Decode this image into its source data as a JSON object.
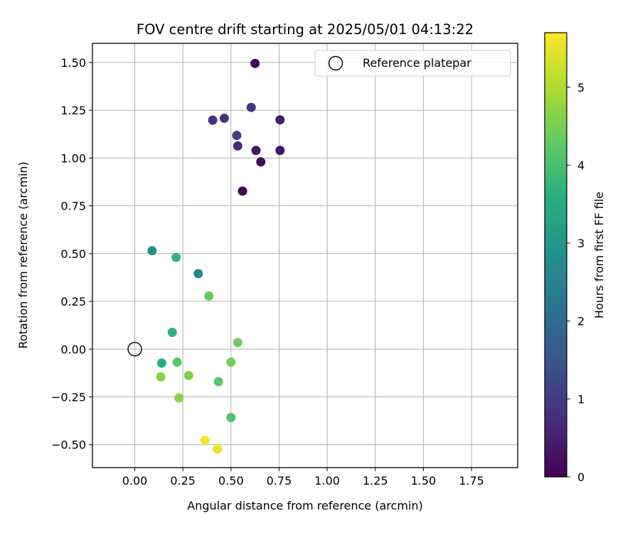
{
  "chart_data": {
    "type": "scatter",
    "title": "FOV centre drift starting at 2025/05/01 04:13:22",
    "xlabel": "Angular distance from reference (arcmin)",
    "ylabel": "Rotation from reference (arcmin)",
    "xlim": [
      -0.22,
      1.99
    ],
    "ylim": [
      -0.62,
      1.6
    ],
    "xticks": [
      0.0,
      0.25,
      0.5,
      0.75,
      1.0,
      1.25,
      1.5,
      1.75
    ],
    "xtick_labels": [
      "0.00",
      "0.25",
      "0.50",
      "0.75",
      "1.00",
      "1.25",
      "1.50",
      "1.75"
    ],
    "yticks": [
      -0.5,
      -0.25,
      0.0,
      0.25,
      0.5,
      0.75,
      1.0,
      1.25,
      1.5
    ],
    "ytick_labels": [
      "−0.50",
      "−0.25",
      "0.00",
      "0.25",
      "0.50",
      "0.75",
      "1.00",
      "1.25",
      "1.50"
    ],
    "grid": true,
    "legend_position": "top-right",
    "colormap": "viridis",
    "colorbar": {
      "label": "Hours from first FF file",
      "min": 0,
      "max": 5.7,
      "ticks": [
        0,
        1,
        2,
        3,
        4,
        5
      ],
      "tick_labels": [
        "0",
        "1",
        "2",
        "3",
        "4",
        "5"
      ]
    },
    "reference": {
      "name": "Reference platepar",
      "x": 0.0,
      "y": 0.0
    },
    "points": [
      {
        "x": 0.625,
        "y": 1.495,
        "hours": 0.1
      },
      {
        "x": 0.605,
        "y": 1.265,
        "hours": 0.9
      },
      {
        "x": 0.755,
        "y": 1.2,
        "hours": 0.45
      },
      {
        "x": 0.405,
        "y": 1.198,
        "hours": 0.75
      },
      {
        "x": 0.465,
        "y": 1.208,
        "hours": 0.85
      },
      {
        "x": 0.53,
        "y": 1.118,
        "hours": 1.0
      },
      {
        "x": 0.535,
        "y": 1.063,
        "hours": 0.7
      },
      {
        "x": 0.63,
        "y": 1.04,
        "hours": 0.35
      },
      {
        "x": 0.755,
        "y": 1.04,
        "hours": 0.3
      },
      {
        "x": 0.655,
        "y": 0.98,
        "hours": 0.15
      },
      {
        "x": 0.56,
        "y": 0.827,
        "hours": 0.05
      },
      {
        "x": 0.09,
        "y": 0.515,
        "hours": 2.85
      },
      {
        "x": 0.215,
        "y": 0.48,
        "hours": 3.7
      },
      {
        "x": 0.33,
        "y": 0.395,
        "hours": 2.7
      },
      {
        "x": 0.385,
        "y": 0.278,
        "hours": 4.35
      },
      {
        "x": 0.195,
        "y": 0.088,
        "hours": 3.65
      },
      {
        "x": 0.535,
        "y": 0.035,
        "hours": 4.4
      },
      {
        "x": 0.14,
        "y": -0.073,
        "hours": 3.55
      },
      {
        "x": 0.22,
        "y": -0.068,
        "hours": 4.2
      },
      {
        "x": 0.5,
        "y": -0.068,
        "hours": 4.45
      },
      {
        "x": 0.135,
        "y": -0.145,
        "hours": 4.6
      },
      {
        "x": 0.28,
        "y": -0.138,
        "hours": 4.55
      },
      {
        "x": 0.435,
        "y": -0.17,
        "hours": 4.25
      },
      {
        "x": 0.23,
        "y": -0.255,
        "hours": 4.7
      },
      {
        "x": 0.5,
        "y": -0.358,
        "hours": 4.1
      },
      {
        "x": 0.365,
        "y": -0.477,
        "hours": 5.65
      },
      {
        "x": 0.43,
        "y": -0.523,
        "hours": 5.55
      }
    ]
  }
}
